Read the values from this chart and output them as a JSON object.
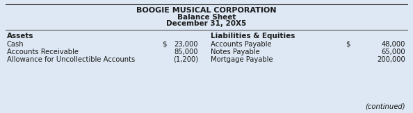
{
  "title": "BOOGIE MUSICAL CORPORATION",
  "subtitle1": "Balance Sheet",
  "subtitle2": "December 31, 20X5",
  "bg_color": "#dde8f4",
  "left_header": "Assets",
  "right_header": "Liabilities & Equities",
  "left_items": [
    [
      "Cash",
      "$",
      "23,000"
    ],
    [
      "Accounts Receivable",
      "",
      "85,000"
    ],
    [
      "Allowance for Uncollectible Accounts",
      "",
      "(1,200)"
    ]
  ],
  "right_items": [
    [
      "Accounts Payable",
      "$",
      "48,000"
    ],
    [
      "Notes Payable",
      "",
      "65,000"
    ],
    [
      "Mortgage Payable",
      "",
      "200,000"
    ]
  ],
  "continued_text": "(continued)",
  "title_fontsize": 8.0,
  "subtitle_fontsize": 7.5,
  "body_fontsize": 7.2,
  "header_fontsize": 7.5
}
